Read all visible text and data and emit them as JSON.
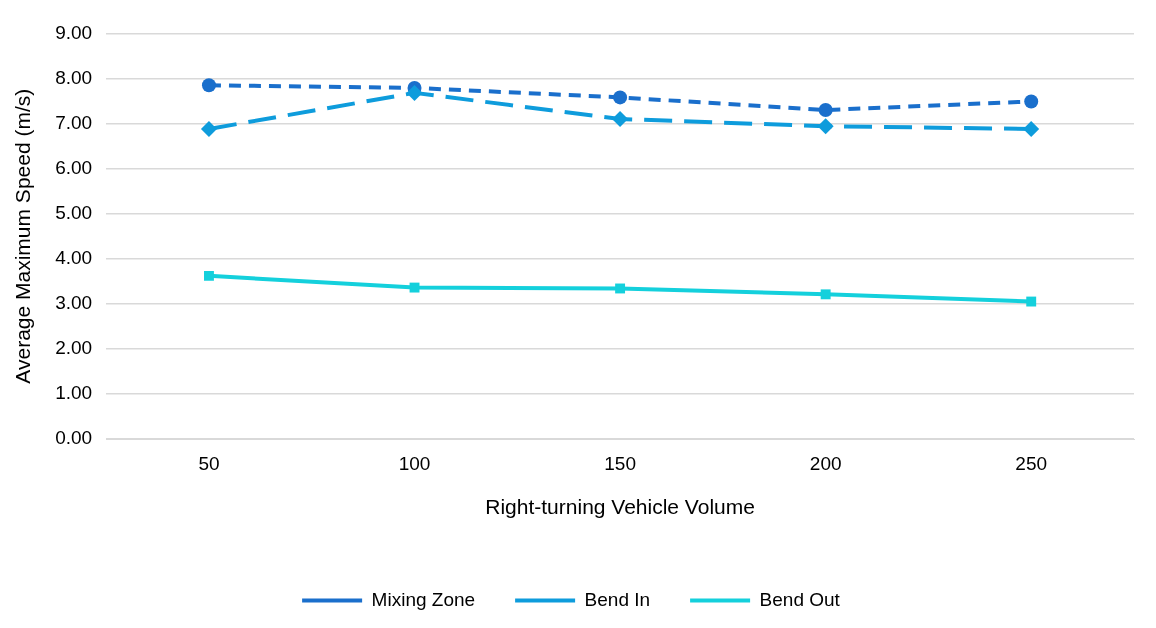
{
  "chart_data": {
    "type": "line",
    "xlabel": "Right-turning Vehicle Volume",
    "ylabel": "Average Maximum Speed (m/s)",
    "categories": [
      "50",
      "100",
      "150",
      "200",
      "250"
    ],
    "series": [
      {
        "name": "Mixing Zone",
        "color": "#1a6fcc",
        "values": [
          7.85,
          7.79,
          7.58,
          7.3,
          7.49
        ],
        "marker": "circle",
        "line_style": "dashed"
      },
      {
        "name": "Bend In",
        "color": "#0e9cdc",
        "values": [
          6.88,
          7.68,
          7.1,
          6.94,
          6.88
        ],
        "marker": "diamond",
        "line_style": "dashed"
      },
      {
        "name": "Bend Out",
        "color": "#14d0dc",
        "values": [
          3.62,
          3.36,
          3.34,
          3.21,
          3.05
        ],
        "marker": "square",
        "line_style": "solid"
      }
    ],
    "ylim": [
      0,
      9
    ],
    "yticks": [
      {
        "value": 0,
        "label": "0.00"
      },
      {
        "value": 1,
        "label": "1.00"
      },
      {
        "value": 2,
        "label": "2.00"
      },
      {
        "value": 3,
        "label": "3.00"
      },
      {
        "value": 4,
        "label": "4.00"
      },
      {
        "value": 5,
        "label": "5.00"
      },
      {
        "value": 6,
        "label": "6.00"
      },
      {
        "value": 7,
        "label": "7.00"
      },
      {
        "value": 8,
        "label": "8.00"
      },
      {
        "value": 9,
        "label": "9.00"
      }
    ],
    "grid": "y",
    "legend": "bottom"
  }
}
